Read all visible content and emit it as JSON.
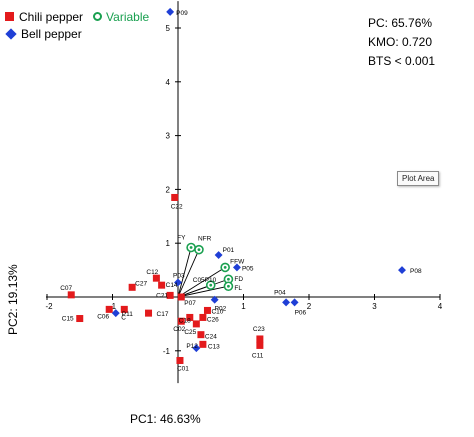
{
  "legend": {
    "chili_label": "Chili pepper",
    "variable_label": "Variable",
    "bell_label": "Bell pepper"
  },
  "stats": {
    "pc": "PC: 65.76%",
    "kmo": "KMO: 0.720",
    "bts": "BTS < 0.001"
  },
  "tooltip": "Plot Area",
  "colors": {
    "chili": "#e31a1c",
    "bell": "#1f3fd6",
    "variable": "#1aa050"
  },
  "chart_data": {
    "type": "scatter",
    "xlabel": "PC1: 46.63%",
    "ylabel": "PC2: 19.13%",
    "xlim": [
      -2,
      4
    ],
    "ylim": [
      -1.6,
      5.5
    ],
    "xticks": [
      -2,
      -1,
      1,
      2,
      3,
      4
    ],
    "yticks": [
      -1,
      1,
      2,
      3,
      4,
      5
    ],
    "xtick_labels": [
      "-2",
      "-1",
      "1",
      "2",
      "3",
      "4"
    ],
    "ytick_labels": [
      "-1",
      "1",
      "2",
      "3",
      "4",
      "5"
    ],
    "series": [
      {
        "name": "Chili pepper",
        "marker": "square",
        "points": [
          {
            "label": "C22",
            "x": -0.05,
            "y": 1.85
          },
          {
            "label": "C12",
            "x": -0.33,
            "y": 0.35
          },
          {
            "label": "C14",
            "x": -0.25,
            "y": 0.22
          },
          {
            "label": "C27",
            "x": -0.7,
            "y": 0.18
          },
          {
            "label": "C07",
            "x": -1.63,
            "y": 0.04
          },
          {
            "label": "C15",
            "x": -1.5,
            "y": -0.4
          },
          {
            "label": "C06",
            "x": -1.05,
            "y": -0.23
          },
          {
            "label": "C",
            "x": -0.82,
            "y": -0.23
          },
          {
            "label": "C21",
            "x": -0.12,
            "y": 0.03
          },
          {
            "label": "C17",
            "x": -0.45,
            "y": -0.3
          },
          {
            "label": "P07",
            "x": 0.05,
            "y": 0.0
          },
          {
            "label": "C18",
            "x": 0.18,
            "y": -0.38
          },
          {
            "label": "C02",
            "x": 0.05,
            "y": -0.45
          },
          {
            "label": "C25",
            "x": 0.28,
            "y": -0.5
          },
          {
            "label": "C26",
            "x": 0.38,
            "y": -0.38
          },
          {
            "label": "C10",
            "x": 0.45,
            "y": -0.25
          },
          {
            "label": "C24",
            "x": 0.35,
            "y": -0.7
          },
          {
            "label": "C13",
            "x": 0.38,
            "y": -0.88
          },
          {
            "label": "C01",
            "x": 0.03,
            "y": -1.18
          },
          {
            "label": "C23",
            "x": 1.25,
            "y": -0.78
          },
          {
            "label": "C11",
            "x": 1.25,
            "y": -0.9
          }
        ]
      },
      {
        "name": "Bell pepper",
        "marker": "diamond",
        "points": [
          {
            "label": "P09",
            "x": -0.12,
            "y": 5.3
          },
          {
            "label": "P01",
            "x": 0.62,
            "y": 0.78
          },
          {
            "label": "P05",
            "x": 0.9,
            "y": 0.55
          },
          {
            "label": "P08",
            "x": 3.42,
            "y": 0.5
          },
          {
            "label": "P04",
            "x": 1.65,
            "y": -0.1
          },
          {
            "label": "P06",
            "x": 1.78,
            "y": -0.1
          },
          {
            "label": "P02",
            "x": 0.56,
            "y": -0.05
          },
          {
            "label": "P03",
            "x": 0.0,
            "y": 0.27
          },
          {
            "label": "P11",
            "x": -0.95,
            "y": -0.3
          },
          {
            "label": "P12",
            "x": 0.28,
            "y": -0.95
          }
        ]
      },
      {
        "name": "Variable",
        "marker": "circle",
        "points": [
          {
            "label": "FY",
            "x": 0.2,
            "y": 0.92
          },
          {
            "label": "NFR",
            "x": 0.32,
            "y": 0.88
          },
          {
            "label": "FFW",
            "x": 0.72,
            "y": 0.55
          },
          {
            "label": "FD",
            "x": 0.77,
            "y": 0.33
          },
          {
            "label": "FL",
            "x": 0.77,
            "y": 0.2
          },
          {
            "label": "C05P10",
            "x": 0.5,
            "y": 0.22
          }
        ]
      }
    ]
  }
}
